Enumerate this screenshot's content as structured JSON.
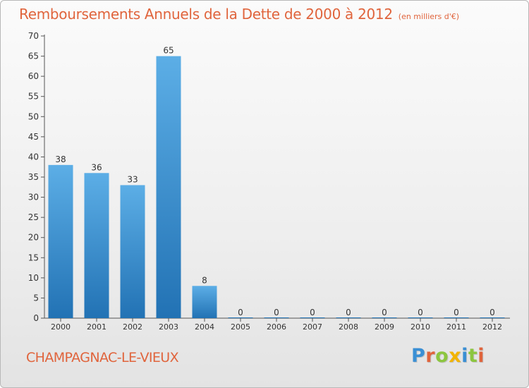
{
  "chart_data": {
    "type": "bar",
    "title": "Remboursements Annuels de la Dette de 2000 à 2012",
    "subtitle": "(en milliers d'€)",
    "xlabel": "",
    "ylabel": "",
    "categories": [
      "2000",
      "2001",
      "2002",
      "2003",
      "2004",
      "2005",
      "2006",
      "2007",
      "2008",
      "2009",
      "2010",
      "2011",
      "2012"
    ],
    "values": [
      38,
      36,
      33,
      65,
      8,
      0,
      0,
      0,
      0,
      0,
      0,
      0,
      0
    ],
    "ylim": [
      0,
      70
    ],
    "yticks": [
      0,
      5,
      10,
      15,
      20,
      25,
      30,
      35,
      40,
      45,
      50,
      55,
      60,
      65,
      70
    ],
    "grid": false,
    "bar_color_top": "#5caee6",
    "bar_color_bottom": "#2272b4"
  },
  "footer": {
    "commune": "CHAMPAGNAC-LE-VIEUX",
    "logo_letters": [
      {
        "char": "P",
        "color": "#3a8fd4"
      },
      {
        "char": "r",
        "color": "#e0643c"
      },
      {
        "char": "o",
        "color": "#8cc63f"
      },
      {
        "char": "x",
        "color": "#f2b400"
      },
      {
        "char": "i",
        "color": "#3a8fd4"
      },
      {
        "char": "t",
        "color": "#8cc63f"
      },
      {
        "char": "i",
        "color": "#e0643c"
      }
    ]
  },
  "colors": {
    "accent": "#e0643c",
    "axis": "#333333",
    "label": "#333333"
  }
}
